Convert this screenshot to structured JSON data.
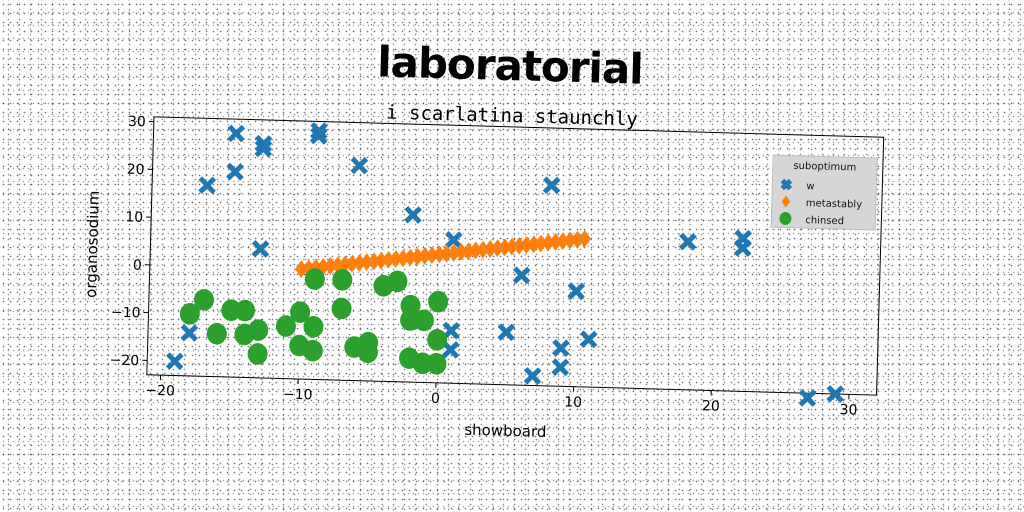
{
  "chart_data": {
    "type": "scatter",
    "title": "laboratorial",
    "subtitle": "i scarlatina staunchly",
    "xlabel": "showboard",
    "ylabel": "organosodium",
    "xlim": [
      -21,
      32
    ],
    "ylim": [
      -23,
      31
    ],
    "xticks": [
      -20,
      -10,
      0,
      10,
      20,
      30
    ],
    "yticks": [
      -20,
      -10,
      0,
      10,
      20,
      30
    ],
    "grid": false,
    "legend": {
      "title": "suboptimum",
      "placement": "top-right"
    },
    "series": [
      {
        "name": "w",
        "marker": "x",
        "color": "#1f77b4",
        "points": [
          [
            -15,
            28
          ],
          [
            -13,
            26
          ],
          [
            -13,
            25
          ],
          [
            -9,
            29
          ],
          [
            -9,
            28
          ],
          [
            -15,
            20
          ],
          [
            -17,
            17
          ],
          [
            -6,
            22
          ],
          [
            -2,
            12
          ],
          [
            1,
            7
          ],
          [
            -13,
            4
          ],
          [
            8,
            19
          ],
          [
            6,
            0
          ],
          [
            10,
            -3
          ],
          [
            1,
            -12
          ],
          [
            1,
            -16
          ],
          [
            5,
            -12
          ],
          [
            9,
            -15
          ],
          [
            9,
            -19
          ],
          [
            11,
            -13
          ],
          [
            7,
            -21
          ],
          [
            -19,
            -20
          ],
          [
            -18,
            -14
          ],
          [
            18,
            8
          ],
          [
            22,
            9
          ],
          [
            22,
            7
          ],
          [
            27,
            -24
          ],
          [
            29,
            -23
          ]
        ]
      },
      {
        "name": "metastably",
        "marker": "diamond",
        "color": "#ff7f0e",
        "line_from": [
          -10,
          0
        ],
        "line_to": [
          10.5,
          8
        ],
        "count": 40
      },
      {
        "name": "chinsed",
        "marker": "circle",
        "color": "#2ca02c",
        "points": [
          [
            -17,
            -7
          ],
          [
            -18,
            -10
          ],
          [
            -16,
            -14
          ],
          [
            -15,
            -9
          ],
          [
            -14,
            -9
          ],
          [
            -14,
            -14
          ],
          [
            -13,
            -13
          ],
          [
            -13,
            -18
          ],
          [
            -11,
            -12
          ],
          [
            -10,
            -9
          ],
          [
            -10,
            -16
          ],
          [
            -9,
            -12
          ],
          [
            -9,
            -17
          ],
          [
            -9,
            -2
          ],
          [
            -7,
            -2
          ],
          [
            -7,
            -8
          ],
          [
            -6,
            -16
          ],
          [
            -5,
            -15
          ],
          [
            -5,
            -17
          ],
          [
            -4,
            -3
          ],
          [
            -3,
            -2
          ],
          [
            -2,
            -10
          ],
          [
            -2,
            -7
          ],
          [
            -1,
            -10
          ],
          [
            -2,
            -18
          ],
          [
            -1,
            -19
          ],
          [
            0,
            -19
          ],
          [
            0,
            -6
          ],
          [
            0,
            -14
          ]
        ]
      }
    ]
  }
}
